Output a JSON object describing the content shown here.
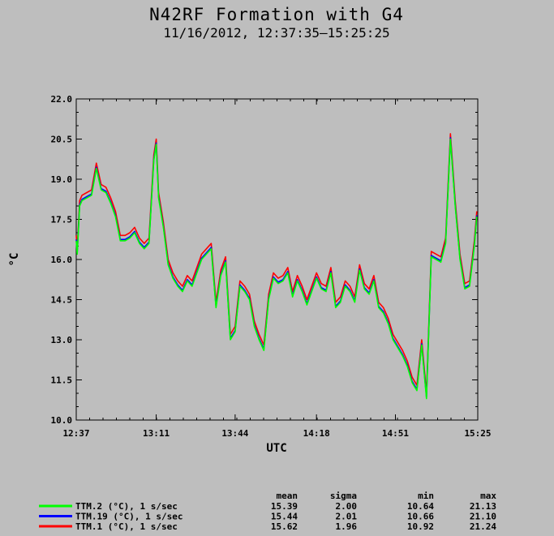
{
  "chart_data": {
    "type": "line",
    "title": "N42RF Formation with G4",
    "subtitle": "11/16/2012, 12:37:35–15:25:25",
    "xlabel": "UTC",
    "ylabel": "°C",
    "ylim": [
      10.0,
      22.0
    ],
    "yticks": [
      "10.0",
      "11.5",
      "13.0",
      "14.5",
      "16.0",
      "17.5",
      "19.0",
      "20.5",
      "22.0"
    ],
    "xlim": [
      "12:37",
      "15:25"
    ],
    "xticks": [
      "12:37",
      "13:11",
      "13:44",
      "14:18",
      "14:51",
      "15:25"
    ],
    "legend_placement": "bottom-left",
    "stats_headers": [
      "mean",
      "sigma",
      "min",
      "max"
    ],
    "series": [
      {
        "name": "TTM.2 (°C), 1 s/sec",
        "color": "#00ff00",
        "stats": [
          "15.39",
          "2.00",
          "10.64",
          "21.13"
        ],
        "x": [
          "12:37",
          "12:38",
          "12:39",
          "12:40",
          "12:42",
          "12:44",
          "12:46",
          "12:48",
          "12:50",
          "12:52",
          "12:54",
          "12:56",
          "12:58",
          "13:00",
          "13:02",
          "13:04",
          "13:06",
          "13:08",
          "13:10",
          "13:11",
          "13:12",
          "13:14",
          "13:16",
          "13:18",
          "13:20",
          "13:22",
          "13:24",
          "13:26",
          "13:28",
          "13:30",
          "13:32",
          "13:34",
          "13:36",
          "13:38",
          "13:40",
          "13:42",
          "13:44",
          "13:46",
          "13:48",
          "13:50",
          "13:52",
          "13:54",
          "13:56",
          "13:58",
          "14:00",
          "14:02",
          "14:04",
          "14:06",
          "14:08",
          "14:10",
          "14:12",
          "14:14",
          "14:16",
          "14:18",
          "14:20",
          "14:22",
          "14:24",
          "14:26",
          "14:28",
          "14:30",
          "14:32",
          "14:34",
          "14:36",
          "14:38",
          "14:40",
          "14:42",
          "14:44",
          "14:46",
          "14:48",
          "14:50",
          "14:52",
          "14:54",
          "14:56",
          "14:58",
          "15:00",
          "15:02",
          "15:04",
          "15:06",
          "15:08",
          "15:10",
          "15:12",
          "15:14",
          "15:16",
          "15:18",
          "15:20",
          "15:22",
          "15:24",
          "15:25"
        ],
        "y": [
          16.7,
          16.2,
          18.0,
          18.2,
          18.3,
          18.4,
          19.4,
          18.6,
          18.5,
          18.1,
          17.6,
          16.7,
          16.7,
          16.8,
          17.0,
          16.6,
          16.4,
          16.6,
          19.7,
          20.3,
          18.3,
          17.2,
          15.8,
          15.3,
          15.0,
          14.8,
          15.2,
          15.0,
          15.5,
          16.0,
          16.2,
          16.4,
          14.2,
          15.4,
          15.9,
          13.0,
          13.3,
          15.0,
          14.8,
          14.5,
          13.5,
          13.0,
          12.6,
          14.5,
          15.3,
          15.1,
          15.2,
          15.5,
          14.6,
          15.2,
          14.8,
          14.3,
          14.8,
          15.3,
          14.9,
          14.8,
          15.5,
          14.2,
          14.4,
          15.0,
          14.8,
          14.4,
          15.6,
          14.9,
          14.7,
          15.2,
          14.2,
          14.0,
          13.6,
          13.0,
          12.7,
          12.4,
          12.0,
          11.4,
          11.1,
          12.8,
          10.8,
          16.1,
          16.0,
          15.9,
          16.6,
          20.5,
          18.0,
          16.0,
          14.9,
          15.0,
          16.5,
          17.6
        ]
      },
      {
        "name": "TTM.19 (°C), 1 s/sec",
        "color": "#0000ff",
        "stats": [
          "15.44",
          "2.01",
          "10.66",
          "21.10"
        ],
        "x": [
          "12:37",
          "12:38",
          "12:39",
          "12:40",
          "12:42",
          "12:44",
          "12:46",
          "12:48",
          "12:50",
          "12:52",
          "12:54",
          "12:56",
          "12:58",
          "13:00",
          "13:02",
          "13:04",
          "13:06",
          "13:08",
          "13:10",
          "13:11",
          "13:12",
          "13:14",
          "13:16",
          "13:18",
          "13:20",
          "13:22",
          "13:24",
          "13:26",
          "13:28",
          "13:30",
          "13:32",
          "13:34",
          "13:36",
          "13:38",
          "13:40",
          "13:42",
          "13:44",
          "13:46",
          "13:48",
          "13:50",
          "13:52",
          "13:54",
          "13:56",
          "13:58",
          "14:00",
          "14:02",
          "14:04",
          "14:06",
          "14:08",
          "14:10",
          "14:12",
          "14:14",
          "14:16",
          "14:18",
          "14:20",
          "14:22",
          "14:24",
          "14:26",
          "14:28",
          "14:30",
          "14:32",
          "14:34",
          "14:36",
          "14:38",
          "14:40",
          "14:42",
          "14:44",
          "14:46",
          "14:48",
          "14:50",
          "14:52",
          "14:54",
          "14:56",
          "14:58",
          "15:00",
          "15:02",
          "15:04",
          "15:06",
          "15:08",
          "15:10",
          "15:12",
          "15:14",
          "15:16",
          "15:18",
          "15:20",
          "15:22",
          "15:24",
          "15:25"
        ],
        "y": [
          16.75,
          16.25,
          18.05,
          18.25,
          18.35,
          18.45,
          19.45,
          18.65,
          18.55,
          18.15,
          17.65,
          16.75,
          16.75,
          16.85,
          17.05,
          16.65,
          16.45,
          16.65,
          19.75,
          20.35,
          18.35,
          17.25,
          15.85,
          15.35,
          15.05,
          14.85,
          15.25,
          15.05,
          15.55,
          16.05,
          16.25,
          16.45,
          14.25,
          15.45,
          15.95,
          13.05,
          13.35,
          15.05,
          14.85,
          14.55,
          13.55,
          13.05,
          12.65,
          14.55,
          15.35,
          15.15,
          15.25,
          15.55,
          14.65,
          15.25,
          14.85,
          14.35,
          14.85,
          15.35,
          14.95,
          14.85,
          15.55,
          14.25,
          14.45,
          15.05,
          14.85,
          14.45,
          15.65,
          14.95,
          14.75,
          15.25,
          14.25,
          14.05,
          13.65,
          13.05,
          12.75,
          12.45,
          12.05,
          11.45,
          11.15,
          12.85,
          10.85,
          16.15,
          16.05,
          15.95,
          16.65,
          20.55,
          18.05,
          16.05,
          14.95,
          15.05,
          16.55,
          17.65
        ]
      },
      {
        "name": "TTM.1 (°C), 1 s/sec",
        "color": "#ff0000",
        "stats": [
          "15.62",
          "1.96",
          "10.92",
          "21.24"
        ],
        "x": [
          "12:37",
          "12:38",
          "12:39",
          "12:40",
          "12:42",
          "12:44",
          "12:46",
          "12:48",
          "12:50",
          "12:52",
          "12:54",
          "12:56",
          "12:58",
          "13:00",
          "13:02",
          "13:04",
          "13:06",
          "13:08",
          "13:10",
          "13:11",
          "13:12",
          "13:14",
          "13:16",
          "13:18",
          "13:20",
          "13:22",
          "13:24",
          "13:26",
          "13:28",
          "13:30",
          "13:32",
          "13:34",
          "13:36",
          "13:38",
          "13:40",
          "13:42",
          "13:44",
          "13:46",
          "13:48",
          "13:50",
          "13:52",
          "13:54",
          "13:56",
          "13:58",
          "14:00",
          "14:02",
          "14:04",
          "14:06",
          "14:08",
          "14:10",
          "14:12",
          "14:14",
          "14:16",
          "14:18",
          "14:20",
          "14:22",
          "14:24",
          "14:26",
          "14:28",
          "14:30",
          "14:32",
          "14:34",
          "14:36",
          "14:38",
          "14:40",
          "14:42",
          "14:44",
          "14:46",
          "14:48",
          "14:50",
          "14:52",
          "14:54",
          "14:56",
          "14:58",
          "15:00",
          "15:02",
          "15:04",
          "15:06",
          "15:08",
          "15:10",
          "15:12",
          "15:14",
          "15:16",
          "15:18",
          "15:20",
          "15:22",
          "15:24",
          "15:25"
        ],
        "y": [
          16.9,
          16.4,
          18.2,
          18.4,
          18.5,
          18.6,
          19.6,
          18.8,
          18.7,
          18.3,
          17.8,
          16.9,
          16.9,
          17.0,
          17.2,
          16.8,
          16.6,
          16.8,
          19.9,
          20.5,
          18.5,
          17.4,
          16.0,
          15.5,
          15.2,
          15.0,
          15.4,
          15.2,
          15.7,
          16.2,
          16.4,
          16.6,
          14.4,
          15.6,
          16.1,
          13.2,
          13.5,
          15.2,
          15.0,
          14.7,
          13.7,
          13.2,
          12.8,
          14.7,
          15.5,
          15.3,
          15.4,
          15.7,
          14.8,
          15.4,
          15.0,
          14.5,
          15.0,
          15.5,
          15.1,
          15.0,
          15.7,
          14.4,
          14.6,
          15.2,
          15.0,
          14.6,
          15.8,
          15.1,
          14.9,
          15.4,
          14.4,
          14.2,
          13.8,
          13.2,
          12.9,
          12.6,
          12.2,
          11.6,
          11.3,
          13.0,
          11.0,
          16.3,
          16.2,
          16.1,
          16.8,
          20.7,
          18.2,
          16.2,
          15.1,
          15.2,
          16.7,
          17.8
        ]
      }
    ]
  }
}
